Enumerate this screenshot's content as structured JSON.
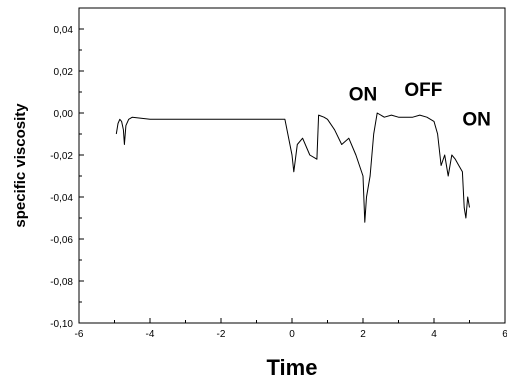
{
  "chart_data": {
    "type": "line",
    "xlabel": "Time",
    "ylabel": "specific viscosity",
    "xlim": [
      -6,
      6
    ],
    "ylim": [
      -0.1,
      0.05
    ],
    "x_ticks": [
      -6,
      -4,
      -2,
      0,
      2,
      4,
      6
    ],
    "x_tick_labels": [
      "-6",
      "-4",
      "-2",
      "0",
      "2",
      "4",
      "6"
    ],
    "y_ticks": [
      -0.1,
      -0.08,
      -0.06,
      -0.04,
      -0.02,
      0.0,
      0.02,
      0.04
    ],
    "y_tick_labels": [
      "-0,10",
      "-0,08",
      "-0,06",
      "-0,04",
      "-0,02",
      "0,00",
      "0,02",
      "0,04"
    ],
    "annotations": [
      {
        "text": "ON",
        "x": 2.0,
        "y": 0.006
      },
      {
        "text": "OFF",
        "x": 3.7,
        "y": 0.008
      },
      {
        "text": "ON",
        "x": 5.2,
        "y": -0.006
      }
    ],
    "series": [
      {
        "color": "#000000",
        "x": [
          -4.95,
          -4.9,
          -4.85,
          -4.8,
          -4.75,
          -4.72,
          -4.68,
          -4.6,
          -4.5,
          -4.0,
          -3.0,
          -2.0,
          -1.0,
          -0.2,
          0.0,
          0.05,
          0.15,
          0.3,
          0.5,
          0.7,
          0.75,
          0.9,
          1.0,
          1.2,
          1.4,
          1.6,
          1.8,
          2.0,
          2.05,
          2.1,
          2.2,
          2.3,
          2.4,
          2.6,
          2.8,
          3.0,
          3.2,
          3.4,
          3.6,
          3.8,
          4.0,
          4.1,
          4.2,
          4.3,
          4.4,
          4.5,
          4.6,
          4.7,
          4.8,
          4.85,
          4.9,
          4.95,
          5.0
        ],
        "y": [
          -0.01,
          -0.005,
          -0.003,
          -0.004,
          -0.008,
          -0.015,
          -0.006,
          -0.003,
          -0.002,
          -0.003,
          -0.003,
          -0.003,
          -0.003,
          -0.003,
          -0.02,
          -0.028,
          -0.015,
          -0.012,
          -0.02,
          -0.022,
          -0.001,
          -0.002,
          -0.003,
          -0.008,
          -0.015,
          -0.012,
          -0.02,
          -0.03,
          -0.052,
          -0.04,
          -0.03,
          -0.01,
          0.0,
          -0.002,
          -0.001,
          -0.002,
          -0.002,
          -0.002,
          -0.001,
          -0.002,
          -0.004,
          -0.01,
          -0.025,
          -0.02,
          -0.03,
          -0.02,
          -0.022,
          -0.025,
          -0.028,
          -0.045,
          -0.05,
          -0.04,
          -0.045
        ]
      }
    ]
  }
}
